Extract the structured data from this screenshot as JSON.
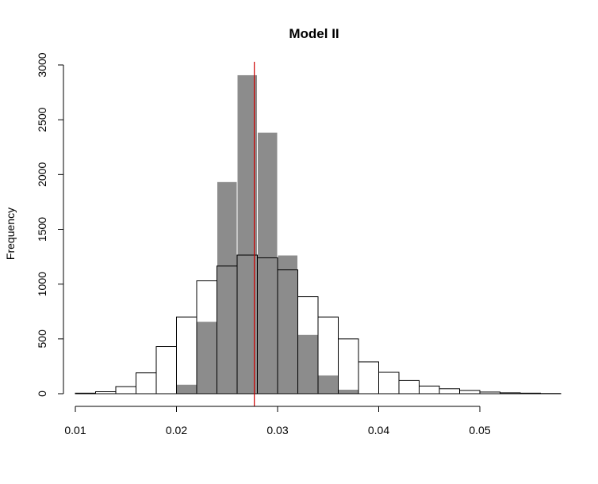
{
  "chart_data": {
    "type": "histogram",
    "title": "Model II",
    "xlabel": "",
    "ylabel": "Frequency",
    "xlim": [
      0.01,
      0.05
    ],
    "ylim": [
      0,
      3000
    ],
    "x_ticks": [
      0.01,
      0.02,
      0.03,
      0.04,
      0.05
    ],
    "x_tick_labels": [
      "0.01",
      "0.02",
      "0.03",
      "0.04",
      "0.05"
    ],
    "y_ticks": [
      0,
      500,
      1000,
      1500,
      2000,
      2500,
      3000
    ],
    "y_tick_labels": [
      "0",
      "500",
      "1000",
      "1500",
      "2000",
      "2500",
      "3000"
    ],
    "grid": false,
    "colors": {
      "filled_bars": "#8c8c8c",
      "filled_bar_border": "#ffffff",
      "outline_bars": "#000000",
      "reference_line": "#cc0000"
    },
    "series": [
      {
        "style": "filled",
        "bin_edges": [
          0.02,
          0.022,
          0.024,
          0.026,
          0.028,
          0.03,
          0.032,
          0.034,
          0.036,
          0.038
        ],
        "counts": [
          85,
          660,
          1935,
          2910,
          2385,
          1265,
          540,
          170,
          40
        ]
      },
      {
        "style": "outline",
        "bin_edges": [
          0.008,
          0.01,
          0.012,
          0.014,
          0.016,
          0.018,
          0.02,
          0.022,
          0.024,
          0.026,
          0.028,
          0.03,
          0.032,
          0.034,
          0.036,
          0.038,
          0.04,
          0.042,
          0.044,
          0.046,
          0.048,
          0.05,
          0.052,
          0.054,
          0.056,
          0.058
        ],
        "counts": [
          0,
          5,
          18,
          65,
          190,
          430,
          700,
          1030,
          1165,
          1265,
          1240,
          1130,
          885,
          700,
          500,
          290,
          195,
          120,
          70,
          45,
          30,
          15,
          8,
          5,
          2
        ]
      }
    ],
    "reference_line": {
      "orientation": "vertical",
      "x": 0.0277
    }
  }
}
